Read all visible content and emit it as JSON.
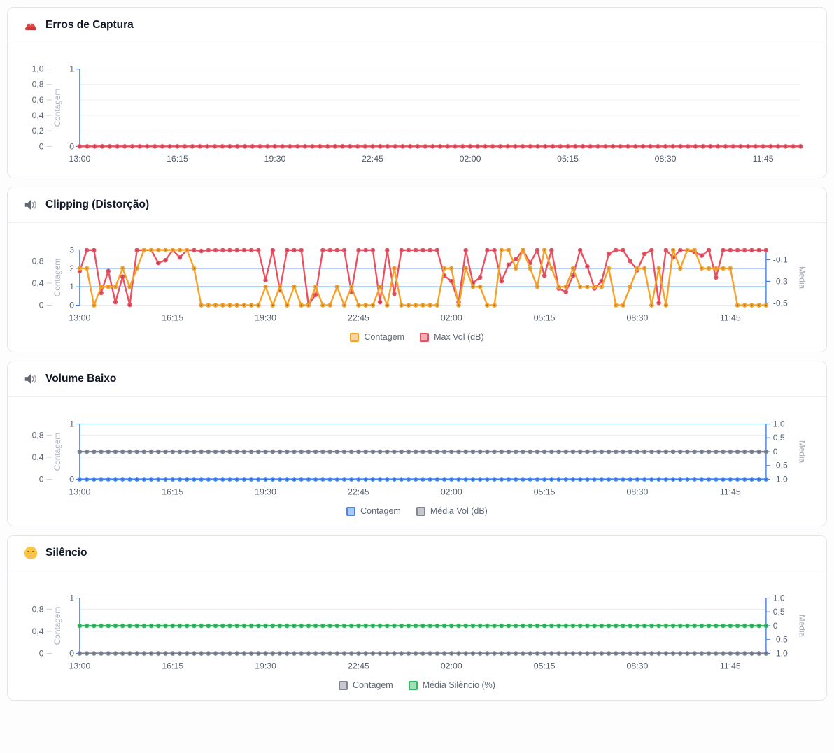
{
  "colors": {
    "axis_blue": "#3d7cf2",
    "grid_gray": "#e9ebf0",
    "tick_text": "#5b6472",
    "x_tick_text": "#525b69",
    "axis_title_text": "#a6adb8",
    "series_red": "#ee4f5e",
    "series_orange": "#f7a226",
    "series_blue": "#4287f5",
    "series_gray": "#808692",
    "series_green": "#31bb5f"
  },
  "chart_data": [
    {
      "type": "line",
      "title": "Erros de Captura",
      "icon": "siren-icon",
      "n_points": 97,
      "x_ticks": [
        {
          "i": 0,
          "t": "13:00"
        },
        {
          "i": 13,
          "t": "16:15"
        },
        {
          "i": 26,
          "t": "19:30"
        },
        {
          "i": 39,
          "t": "22:45"
        },
        {
          "i": 52,
          "t": "02:00"
        },
        {
          "i": 65,
          "t": "05:15"
        },
        {
          "i": 78,
          "t": "08:30"
        },
        {
          "i": 91,
          "t": "11:45"
        }
      ],
      "y_left_outer": {
        "label": "Contagem",
        "min": 0,
        "max": 1,
        "ticks": [
          {
            "v": 1,
            "t": "1,0"
          },
          {
            "v": 0.8,
            "t": "0,8"
          },
          {
            "v": 0.6,
            "t": "0,6"
          },
          {
            "v": 0.4,
            "t": "0,4"
          },
          {
            "v": 0.2,
            "t": "0,2"
          },
          {
            "v": 0,
            "t": "0"
          }
        ]
      },
      "y_left_inner": {
        "min": 0,
        "max": 1,
        "ticks": [
          {
            "v": 1,
            "t": "1"
          },
          {
            "v": 0,
            "t": "0"
          }
        ],
        "blue_grid": []
      },
      "y_right": null,
      "series": [
        {
          "name": "Contagem",
          "color": "#ee4f5e",
          "axis": "inner",
          "constant": 0
        }
      ],
      "legend": []
    },
    {
      "type": "line",
      "title": "Clipping (Distorção)",
      "icon": "speaker-icon",
      "n_points": 97,
      "x_ticks": [
        {
          "i": 0,
          "t": "13:00"
        },
        {
          "i": 13,
          "t": "16:15"
        },
        {
          "i": 26,
          "t": "19:30"
        },
        {
          "i": 39,
          "t": "22:45"
        },
        {
          "i": 52,
          "t": "02:00"
        },
        {
          "i": 65,
          "t": "05:15"
        },
        {
          "i": 78,
          "t": "08:30"
        },
        {
          "i": 91,
          "t": "11:45"
        }
      ],
      "y_left_outer": {
        "label": "Contagem",
        "min": 0,
        "max": 1,
        "ticks": [
          {
            "v": 0.8,
            "t": "0,8"
          },
          {
            "v": 0.4,
            "t": "0,4"
          },
          {
            "v": 0,
            "t": "0"
          }
        ]
      },
      "y_left_inner": {
        "min": 0,
        "max": 3,
        "ticks": [
          {
            "v": 3,
            "t": "3"
          },
          {
            "v": 2,
            "t": "2"
          },
          {
            "v": 1,
            "t": "1"
          },
          {
            "v": 0,
            "t": "0"
          }
        ],
        "blue_grid": [
          3,
          2,
          1
        ]
      },
      "y_right": {
        "label": "Média",
        "min": -0.52,
        "max": -0.01,
        "ticks": [
          {
            "v": -0.1,
            "t": "-0,1"
          },
          {
            "v": -0.3,
            "t": "-0,3"
          },
          {
            "v": -0.5,
            "t": "-0,5"
          }
        ]
      },
      "series": [
        {
          "name": "Contagem",
          "color": "#f7a226",
          "axis": "inner",
          "values": [
            2,
            2,
            0,
            1,
            1,
            1,
            2,
            1,
            2,
            3,
            3,
            3,
            3,
            3,
            3,
            3,
            2,
            0,
            0,
            0,
            0,
            0,
            0,
            0,
            0,
            0,
            1,
            0,
            1,
            0,
            1,
            0,
            0,
            1,
            0,
            0,
            1,
            0,
            1,
            0,
            0,
            0,
            1,
            0,
            2,
            0,
            0,
            0,
            0,
            0,
            0,
            2,
            2,
            0,
            2,
            1,
            1,
            0,
            0,
            3,
            3,
            2,
            3,
            2,
            1,
            3,
            2,
            1,
            1,
            2,
            1,
            1,
            1,
            1,
            2,
            0,
            0,
            1,
            2,
            2,
            0,
            2,
            0,
            3,
            2,
            3,
            3,
            2,
            2,
            2,
            2,
            2,
            0,
            0,
            0,
            0,
            0
          ]
        },
        {
          "name": "Max Vol (dB)",
          "color": "#ee4f5e",
          "axis": "right",
          "values": [
            -0.205,
            -0.012,
            -0.012,
            -0.407,
            -0.205,
            -0.491,
            -0.256,
            -0.516,
            -0.012,
            -0.012,
            -0.012,
            -0.13,
            -0.104,
            -0.012,
            -0.079,
            -0.012,
            -0.012,
            -0.02,
            -0.012,
            -0.012,
            -0.012,
            -0.012,
            -0.012,
            -0.012,
            -0.012,
            -0.012,
            -0.289,
            -0.012,
            -0.382,
            -0.012,
            -0.012,
            -0.012,
            -0.516,
            -0.424,
            -0.012,
            -0.012,
            -0.012,
            -0.012,
            -0.398,
            -0.012,
            -0.012,
            -0.012,
            -0.491,
            -0.012,
            -0.415,
            -0.012,
            -0.012,
            -0.012,
            -0.012,
            -0.012,
            -0.012,
            -0.247,
            -0.298,
            -0.491,
            -0.012,
            -0.314,
            -0.264,
            -0.012,
            -0.012,
            -0.298,
            -0.146,
            -0.096,
            -0.012,
            -0.13,
            -0.012,
            -0.247,
            -0.012,
            -0.365,
            -0.398,
            -0.247,
            -0.012,
            -0.163,
            -0.365,
            -0.298,
            -0.046,
            -0.012,
            -0.012,
            -0.113,
            -0.197,
            -0.046,
            -0.012,
            -0.499,
            -0.012,
            -0.079,
            -0.012,
            -0.012,
            -0.029,
            -0.062,
            -0.012,
            -0.264,
            -0.012,
            -0.012,
            -0.012,
            -0.012,
            -0.012,
            -0.012,
            -0.012
          ]
        }
      ],
      "legend": [
        {
          "label": "Contagem",
          "color": "#f7a226",
          "fill": "rgba(247,162,38,0.45)"
        },
        {
          "label": "Max Vol (dB)",
          "color": "#ee4f5e",
          "fill": "rgba(238,79,94,0.45)"
        }
      ]
    },
    {
      "type": "line",
      "title": "Volume Baixo",
      "icon": "speaker-icon",
      "n_points": 97,
      "x_ticks": [
        {
          "i": 0,
          "t": "13:00"
        },
        {
          "i": 13,
          "t": "16:15"
        },
        {
          "i": 26,
          "t": "19:30"
        },
        {
          "i": 39,
          "t": "22:45"
        },
        {
          "i": 52,
          "t": "02:00"
        },
        {
          "i": 65,
          "t": "05:15"
        },
        {
          "i": 78,
          "t": "08:30"
        },
        {
          "i": 91,
          "t": "11:45"
        }
      ],
      "y_left_outer": {
        "label": "Contagem",
        "min": 0,
        "max": 1,
        "ticks": [
          {
            "v": 0.8,
            "t": "0,8"
          },
          {
            "v": 0.4,
            "t": "0,4"
          },
          {
            "v": 0,
            "t": "0"
          }
        ]
      },
      "y_left_inner": {
        "min": 0,
        "max": 1,
        "ticks": [
          {
            "v": 1,
            "t": "1"
          },
          {
            "v": 0,
            "t": "0"
          }
        ],
        "blue_grid": [
          1
        ]
      },
      "y_right": {
        "label": "Média",
        "min": -1,
        "max": 1,
        "ticks": [
          {
            "v": 1,
            "t": "1,0"
          },
          {
            "v": 0.5,
            "t": "0,5"
          },
          {
            "v": 0,
            "t": "0"
          },
          {
            "v": -0.5,
            "t": "-0,5"
          },
          {
            "v": -1,
            "t": "-1,0"
          }
        ]
      },
      "series": [
        {
          "name": "Contagem",
          "color": "#4287f5",
          "axis": "inner",
          "constant": 0
        },
        {
          "name": "Média Vol (dB)",
          "color": "#808692",
          "axis": "right",
          "constant": 0
        }
      ],
      "legend": [
        {
          "label": "Contagem",
          "color": "#4287f5",
          "fill": "rgba(66,135,245,0.45)"
        },
        {
          "label": "Média Vol (dB)",
          "color": "#808692",
          "fill": "rgba(128,134,146,0.45)"
        }
      ]
    },
    {
      "type": "line",
      "title": "Silêncio",
      "icon": "shush-icon",
      "n_points": 97,
      "x_ticks": [
        {
          "i": 0,
          "t": "13:00"
        },
        {
          "i": 13,
          "t": "16:15"
        },
        {
          "i": 26,
          "t": "19:30"
        },
        {
          "i": 39,
          "t": "22:45"
        },
        {
          "i": 52,
          "t": "02:00"
        },
        {
          "i": 65,
          "t": "05:15"
        },
        {
          "i": 78,
          "t": "08:30"
        },
        {
          "i": 91,
          "t": "11:45"
        }
      ],
      "y_left_outer": {
        "label": "Contagem",
        "min": 0,
        "max": 1,
        "ticks": [
          {
            "v": 0.8,
            "t": "0,8"
          },
          {
            "v": 0.4,
            "t": "0,4"
          },
          {
            "v": 0,
            "t": "0"
          }
        ]
      },
      "y_left_inner": {
        "min": 0,
        "max": 1,
        "ticks": [
          {
            "v": 1,
            "t": "1"
          },
          {
            "v": 0,
            "t": "0"
          }
        ],
        "blue_grid": [
          1
        ]
      },
      "y_right": {
        "label": "Média",
        "min": -1,
        "max": 1,
        "ticks": [
          {
            "v": 1,
            "t": "1,0"
          },
          {
            "v": 0.5,
            "t": "0,5"
          },
          {
            "v": 0,
            "t": "0"
          },
          {
            "v": -0.5,
            "t": "-0,5"
          },
          {
            "v": -1,
            "t": "-1,0"
          }
        ]
      },
      "series": [
        {
          "name": "Contagem",
          "color": "#808692",
          "axis": "inner",
          "constant": 0
        },
        {
          "name": "Média Silêncio (%)",
          "color": "#31bb5f",
          "axis": "right",
          "constant": 0
        }
      ],
      "legend": [
        {
          "label": "Contagem",
          "color": "#808692",
          "fill": "rgba(128,134,146,0.45)"
        },
        {
          "label": "Média Silêncio (%)",
          "color": "#31bb5f",
          "fill": "rgba(49,187,95,0.45)"
        }
      ]
    }
  ]
}
